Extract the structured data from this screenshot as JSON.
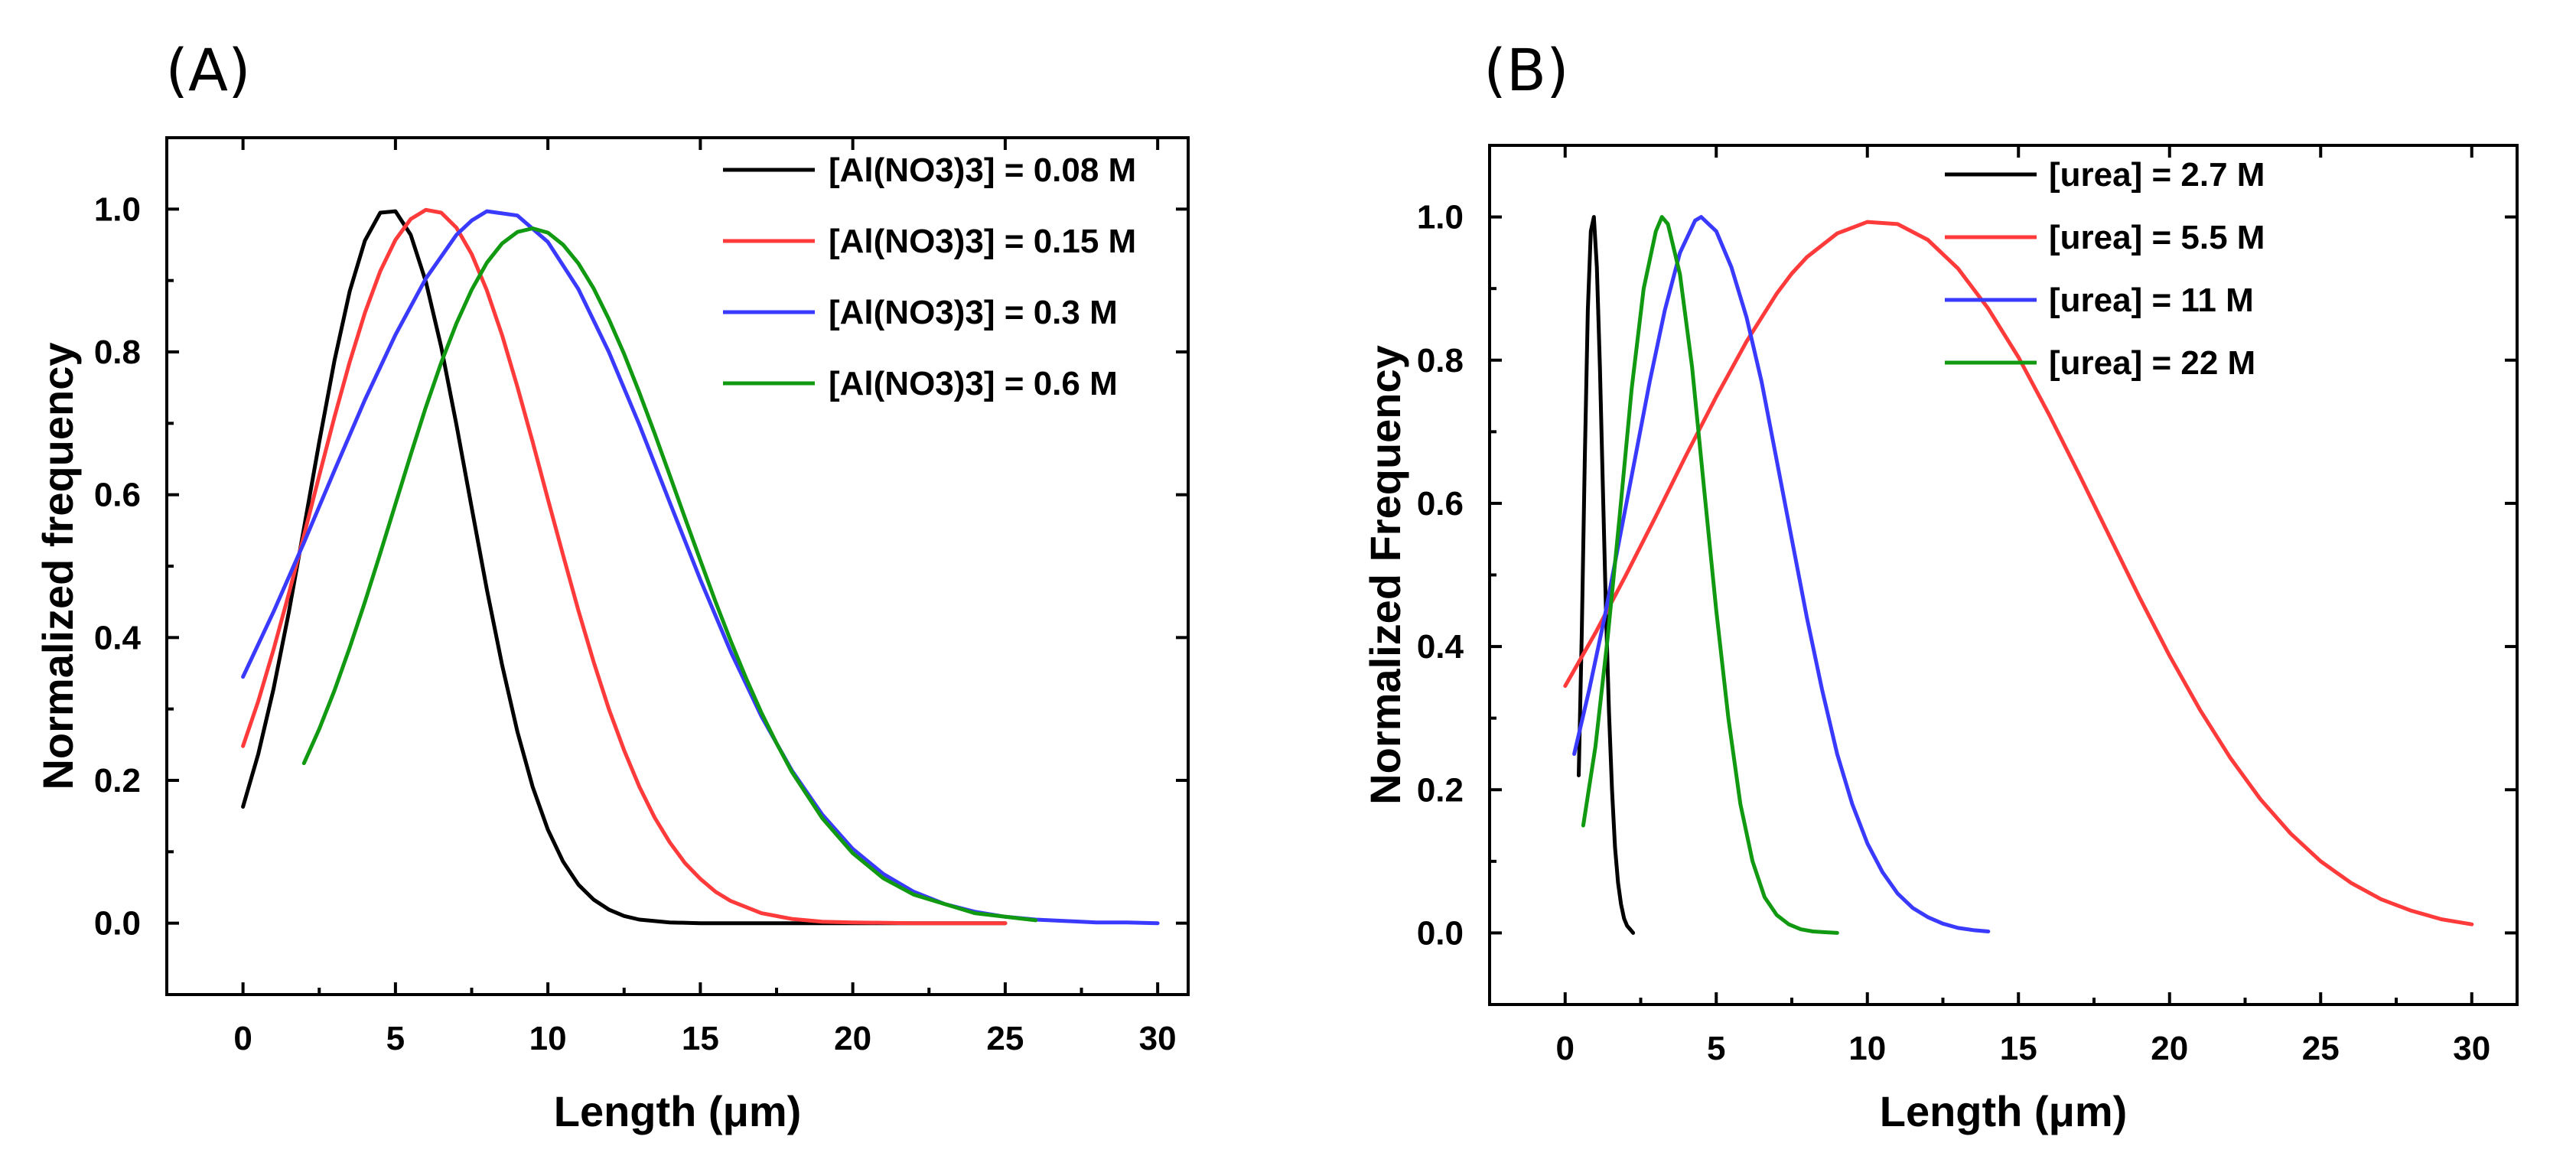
{
  "chart_data": [
    {
      "panel_label": "(A)",
      "type": "line",
      "xlabel": "Length (μm)",
      "ylabel": "Normalized frequency",
      "xlim": [
        -2.5,
        31
      ],
      "ylim": [
        -0.1,
        1.1
      ],
      "xticks": [
        0,
        5,
        10,
        15,
        20,
        25,
        30
      ],
      "yticks": [
        0.0,
        0.2,
        0.4,
        0.6,
        0.8,
        1.0
      ],
      "legend_position": "top-right",
      "series": [
        {
          "name": "[Al(NO3)3] =  0.08 M",
          "color": "#000000",
          "x": [
            0,
            0.5,
            1,
            1.5,
            2,
            2.5,
            3,
            3.5,
            4,
            4.5,
            5,
            5.5,
            6,
            6.5,
            7,
            7.5,
            8,
            8.5,
            9,
            9.5,
            10,
            10.5,
            11,
            11.5,
            12,
            12.5,
            13,
            14,
            15,
            16,
            18,
            20,
            22,
            25
          ],
          "y": [
            0.163,
            0.237,
            0.328,
            0.435,
            0.553,
            0.674,
            0.788,
            0.885,
            0.956,
            0.995,
            0.997,
            0.964,
            0.898,
            0.807,
            0.698,
            0.582,
            0.467,
            0.361,
            0.268,
            0.191,
            0.131,
            0.086,
            0.054,
            0.033,
            0.019,
            0.01,
            0.005,
            0.001,
            0.0,
            0.0,
            0.0,
            0.0,
            0.0,
            0.0
          ]
        },
        {
          "name": "[Al(NO3)3] =  0.15 M",
          "color": "#ff3a3a",
          "x": [
            0,
            0.5,
            1,
            1.5,
            2,
            2.5,
            3,
            3.5,
            4,
            4.5,
            5,
            5.5,
            6,
            6.5,
            7,
            7.5,
            8,
            8.5,
            9,
            9.5,
            10,
            10.5,
            11,
            11.5,
            12,
            12.5,
            13,
            13.5,
            14,
            14.5,
            15,
            15.5,
            16,
            17,
            18,
            19,
            20,
            22,
            25
          ],
          "y": [
            0.248,
            0.311,
            0.383,
            0.461,
            0.543,
            0.627,
            0.709,
            0.786,
            0.855,
            0.913,
            0.957,
            0.986,
            0.999,
            0.995,
            0.974,
            0.937,
            0.886,
            0.823,
            0.751,
            0.674,
            0.594,
            0.515,
            0.438,
            0.366,
            0.3,
            0.242,
            0.191,
            0.148,
            0.113,
            0.084,
            0.062,
            0.044,
            0.031,
            0.014,
            0.006,
            0.002,
            0.001,
            0.0,
            0.0
          ]
        },
        {
          "name": "[Al(NO3)3] =  0.3 M",
          "color": "#3a3aff",
          "x": [
            0,
            1,
            2,
            3,
            4,
            5,
            6,
            7,
            7.5,
            8,
            9,
            10,
            11,
            12,
            13,
            14,
            15,
            16,
            17,
            18,
            19,
            20,
            21,
            22,
            23,
            24,
            25,
            26,
            27,
            28,
            29,
            30
          ],
          "y": [
            0.345,
            0.436,
            0.533,
            0.634,
            0.733,
            0.824,
            0.903,
            0.964,
            0.984,
            0.997,
            0.991,
            0.954,
            0.888,
            0.8,
            0.698,
            0.589,
            0.481,
            0.38,
            0.29,
            0.214,
            0.152,
            0.104,
            0.069,
            0.044,
            0.027,
            0.016,
            0.009,
            0.005,
            0.003,
            0.001,
            0.001,
            0.0
          ]
        },
        {
          "name": "[Al(NO3)3] =  0.6 M",
          "color": "#119911",
          "x": [
            2,
            2.5,
            3,
            3.5,
            4,
            4.5,
            5,
            5.5,
            6,
            6.5,
            7,
            7.5,
            8,
            8.5,
            9,
            9.5,
            10,
            10.5,
            11,
            11.5,
            12,
            12.5,
            13,
            13.5,
            14,
            14.5,
            15,
            15.5,
            16,
            16.5,
            17,
            17.5,
            18,
            19,
            20,
            21,
            22,
            24,
            26
          ],
          "y": [
            0.224,
            0.272,
            0.326,
            0.386,
            0.45,
            0.518,
            0.587,
            0.656,
            0.723,
            0.785,
            0.84,
            0.887,
            0.925,
            0.952,
            0.968,
            0.973,
            0.967,
            0.95,
            0.924,
            0.889,
            0.846,
            0.797,
            0.743,
            0.686,
            0.627,
            0.567,
            0.508,
            0.45,
            0.395,
            0.343,
            0.295,
            0.252,
            0.212,
            0.147,
            0.098,
            0.063,
            0.04,
            0.014,
            0.004
          ]
        }
      ]
    },
    {
      "panel_label": "(B)",
      "type": "line",
      "xlabel": "Length (μm)",
      "ylabel": "Normalized Frequency",
      "xlim": [
        -2.5,
        31.5
      ],
      "ylim": [
        -0.1,
        1.1
      ],
      "xticks": [
        0,
        5,
        10,
        15,
        20,
        25,
        30
      ],
      "yticks": [
        0.0,
        0.2,
        0.4,
        0.6,
        0.8,
        1.0
      ],
      "legend_position": "top-right",
      "series": [
        {
          "name": "[urea] = 2.7 M",
          "color": "#000000",
          "x": [
            0.45,
            0.55,
            0.65,
            0.75,
            0.85,
            0.95,
            1.05,
            1.15,
            1.25,
            1.35,
            1.45,
            1.55,
            1.65,
            1.75,
            1.85,
            1.95,
            2.05,
            2.15,
            2.25
          ],
          "y": [
            0.22,
            0.42,
            0.66,
            0.87,
            0.98,
            1.0,
            0.93,
            0.79,
            0.62,
            0.45,
            0.31,
            0.2,
            0.12,
            0.07,
            0.04,
            0.02,
            0.01,
            0.005,
            0.0
          ]
        },
        {
          "name": "[urea] = 5.5 M",
          "color": "#ff3a3a",
          "x": [
            0,
            1,
            2,
            3,
            4,
            5,
            6,
            7,
            7.5,
            8,
            9,
            10,
            11,
            12,
            13,
            14,
            15,
            16,
            17,
            18,
            19,
            20,
            21,
            22,
            23,
            24,
            25,
            26,
            27,
            28,
            29,
            30
          ],
          "y": [
            0.345,
            0.419,
            0.499,
            0.582,
            0.667,
            0.749,
            0.826,
            0.893,
            0.921,
            0.944,
            0.977,
            0.993,
            0.99,
            0.968,
            0.928,
            0.872,
            0.804,
            0.725,
            0.641,
            0.555,
            0.469,
            0.387,
            0.312,
            0.245,
            0.187,
            0.139,
            0.1,
            0.07,
            0.047,
            0.031,
            0.019,
            0.012
          ]
        },
        {
          "name": "[urea] = 11 M",
          "color": "#3a3aff",
          "x": [
            0.3,
            0.8,
            1.3,
            1.8,
            2.3,
            2.8,
            3.3,
            3.8,
            4.3,
            4.5,
            5,
            5.5,
            6,
            6.5,
            7,
            7.5,
            8,
            8.5,
            9,
            9.5,
            10,
            10.5,
            11,
            11.5,
            12,
            12.5,
            13,
            13.5,
            14
          ],
          "y": [
            0.25,
            0.34,
            0.44,
            0.55,
            0.66,
            0.77,
            0.87,
            0.95,
            0.995,
            1.0,
            0.98,
            0.93,
            0.86,
            0.77,
            0.66,
            0.55,
            0.44,
            0.34,
            0.25,
            0.18,
            0.125,
            0.085,
            0.055,
            0.035,
            0.022,
            0.013,
            0.007,
            0.004,
            0.002
          ]
        },
        {
          "name": "[urea] = 22 M",
          "color": "#119911",
          "x": [
            0.6,
            1,
            1.4,
            1.8,
            2.2,
            2.6,
            3,
            3.2,
            3.4,
            3.8,
            4.2,
            4.6,
            5,
            5.4,
            5.8,
            6.2,
            6.6,
            7,
            7.4,
            7.8,
            8.2,
            8.6,
            9
          ],
          "y": [
            0.15,
            0.26,
            0.41,
            0.58,
            0.76,
            0.9,
            0.98,
            1.0,
            0.99,
            0.92,
            0.79,
            0.62,
            0.45,
            0.3,
            0.18,
            0.1,
            0.05,
            0.025,
            0.012,
            0.005,
            0.002,
            0.001,
            0.0
          ]
        }
      ]
    }
  ]
}
